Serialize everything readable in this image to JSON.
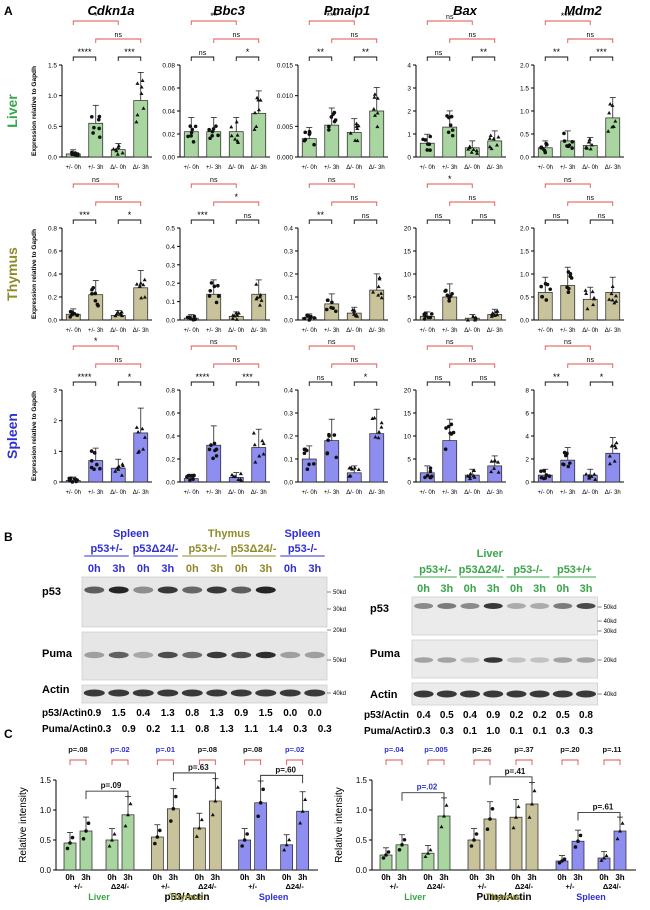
{
  "colors": {
    "liver": "#3aa64a",
    "thymus": "#8f8a2a",
    "spleen": "#2f2fd6",
    "bar_liver": "#a8d5a0",
    "bar_thymus": "#c8c39a",
    "bar_spleen": "#8e8ef0",
    "bracket_red": "#e0524e",
    "pval_blue": "#3030d0"
  },
  "panel_labels": {
    "A": "A",
    "B": "B",
    "C": "C"
  },
  "panel_a": {
    "genes": [
      "Cdkn1a",
      "Bbc3",
      "Pmaip1",
      "Bax",
      "Mdm2"
    ],
    "tissues": [
      "Liver",
      "Thymus",
      "Spleen"
    ],
    "ylabel": "Expression relative to Gapdh",
    "xticks": [
      "+/- 0h",
      "+/- 3h",
      "Δ/- 0h",
      "Δ/- 3h"
    ]
  },
  "chart_data": [
    {
      "type": "bar",
      "tissue": "Liver",
      "gene": "Cdkn1a",
      "categories": [
        "+/- 0h",
        "+/- 3h",
        "Δ/- 0h",
        "Δ/- 3h"
      ],
      "values": [
        0.05,
        0.55,
        0.12,
        0.92
      ],
      "ylim": [
        0,
        1.5
      ],
      "yticks": [
        "0.0",
        "0.5",
        "1.0",
        "1.5"
      ],
      "sig": {
        "short_left": "****",
        "short_right": "***",
        "mid": "ns",
        "long": "*"
      }
    },
    {
      "type": "bar",
      "tissue": "Liver",
      "gene": "Bbc3",
      "categories": [
        "+/- 0h",
        "+/- 3h",
        "Δ/- 0h",
        "Δ/- 3h"
      ],
      "values": [
        0.022,
        0.022,
        0.022,
        0.038
      ],
      "ylim": [
        0,
        0.08
      ],
      "yticks": [
        "0.00",
        "0.02",
        "0.04",
        "0.06",
        "0.08"
      ],
      "sig": {
        "short_left": "ns",
        "short_right": "*",
        "mid": "ns",
        "long": "**"
      }
    },
    {
      "type": "bar",
      "tissue": "Liver",
      "gene": "Pmaip1",
      "categories": [
        "+/- 0h",
        "+/- 3h",
        "Δ/- 0h",
        "Δ/- 3h"
      ],
      "values": [
        0.003,
        0.0052,
        0.004,
        0.0075
      ],
      "ylim": [
        0,
        0.015
      ],
      "yticks": [
        "0.000",
        "0.005",
        "0.010",
        "0.015"
      ],
      "sig": {
        "short_left": "**",
        "short_right": "**",
        "mid": "ns",
        "long": "***"
      }
    },
    {
      "type": "bar",
      "tissue": "Liver",
      "gene": "Bax",
      "categories": [
        "+/- 0h",
        "+/- 3h",
        "Δ/- 0h",
        "Δ/- 3h"
      ],
      "values": [
        0.6,
        1.3,
        0.4,
        0.7
      ],
      "ylim": [
        0,
        4
      ],
      "yticks": [
        "0",
        "1",
        "2",
        "3",
        "4"
      ],
      "sig": {
        "short_left": "ns",
        "short_right": "**",
        "mid": "ns",
        "long": "ns"
      }
    },
    {
      "type": "bar",
      "tissue": "Liver",
      "gene": "Mdm2",
      "categories": [
        "+/- 0h",
        "+/- 3h",
        "Δ/- 0h",
        "Δ/- 3h"
      ],
      "values": [
        0.2,
        0.35,
        0.25,
        0.85
      ],
      "ylim": [
        0,
        2.0
      ],
      "yticks": [
        "0.0",
        "0.5",
        "1.0",
        "1.5",
        "2.0"
      ],
      "sig": {
        "short_left": "**",
        "short_right": "***",
        "mid": "ns",
        "long": "****"
      }
    },
    {
      "type": "bar",
      "tissue": "Thymus",
      "gene": "Cdkn1a",
      "categories": [
        "+/- 0h",
        "+/- 3h",
        "Δ/- 0h",
        "Δ/- 3h"
      ],
      "values": [
        0.05,
        0.22,
        0.04,
        0.28
      ],
      "ylim": [
        0,
        0.8
      ],
      "yticks": [
        "0.0",
        "0.2",
        "0.4",
        "0.6",
        "0.8"
      ],
      "sig": {
        "short_left": "***",
        "short_right": "*",
        "mid": "ns",
        "long": "ns"
      }
    },
    {
      "type": "bar",
      "tissue": "Thymus",
      "gene": "Bbc3",
      "categories": [
        "+/- 0h",
        "+/- 3h",
        "Δ/- 0h",
        "Δ/- 3h"
      ],
      "values": [
        0.01,
        0.14,
        0.02,
        0.14
      ],
      "ylim": [
        0,
        0.5
      ],
      "yticks": [
        "0.0",
        "0.1",
        "0.2",
        "0.3",
        "0.4",
        "0.5"
      ],
      "sig": {
        "short_left": "***",
        "short_right": "ns",
        "mid": "*",
        "long": "ns"
      }
    },
    {
      "type": "bar",
      "tissue": "Thymus",
      "gene": "Pmaip1",
      "categories": [
        "+/- 0h",
        "+/- 3h",
        "Δ/- 0h",
        "Δ/- 3h"
      ],
      "values": [
        0.01,
        0.07,
        0.03,
        0.13
      ],
      "ylim": [
        0,
        0.4
      ],
      "yticks": [
        "0.0",
        "0.1",
        "0.2",
        "0.3",
        "0.4"
      ],
      "sig": {
        "short_left": "**",
        "short_right": "ns",
        "mid": "ns",
        "long": "ns"
      }
    },
    {
      "type": "bar",
      "tissue": "Thymus",
      "gene": "Bax",
      "categories": [
        "+/- 0h",
        "+/- 3h",
        "Δ/- 0h",
        "Δ/- 3h"
      ],
      "values": [
        0.8,
        5.0,
        0.4,
        1.2
      ],
      "ylim": [
        0,
        20
      ],
      "yticks": [
        "0",
        "5",
        "10",
        "15",
        "20"
      ],
      "sig": {
        "short_left": "ns",
        "short_right": "ns",
        "mid": "ns",
        "long": "*"
      }
    },
    {
      "type": "bar",
      "tissue": "Thymus",
      "gene": "Mdm2",
      "categories": [
        "+/- 0h",
        "+/- 3h",
        "Δ/- 0h",
        "Δ/- 3h"
      ],
      "values": [
        0.6,
        0.75,
        0.45,
        0.6
      ],
      "ylim": [
        0,
        2.0
      ],
      "yticks": [
        "0.0",
        "0.5",
        "1.0",
        "1.5",
        "2.0"
      ],
      "sig": {
        "short_left": "ns",
        "short_right": "ns",
        "mid": "ns",
        "long": "ns"
      }
    },
    {
      "type": "bar",
      "tissue": "Spleen",
      "gene": "Cdkn1a",
      "categories": [
        "+/- 0h",
        "+/- 3h",
        "Δ/- 0h",
        "Δ/- 3h"
      ],
      "values": [
        0.05,
        0.7,
        0.45,
        1.6
      ],
      "ylim": [
        0,
        3
      ],
      "yticks": [
        "0",
        "1",
        "2",
        "3"
      ],
      "sig": {
        "short_left": "****",
        "short_right": "*",
        "mid": "ns",
        "long": "*"
      }
    },
    {
      "type": "bar",
      "tissue": "Spleen",
      "gene": "Bbc3",
      "categories": [
        "+/- 0h",
        "+/- 3h",
        "Δ/- 0h",
        "Δ/- 3h"
      ],
      "values": [
        0.03,
        0.32,
        0.04,
        0.3
      ],
      "ylim": [
        0,
        0.8
      ],
      "yticks": [
        "0.0",
        "0.2",
        "0.4",
        "0.6",
        "0.8"
      ],
      "sig": {
        "short_left": "****",
        "short_right": "***",
        "mid": "ns",
        "long": "ns"
      }
    },
    {
      "type": "bar",
      "tissue": "Spleen",
      "gene": "Pmaip1",
      "categories": [
        "+/- 0h",
        "+/- 3h",
        "Δ/- 0h",
        "Δ/- 3h"
      ],
      "values": [
        0.1,
        0.18,
        0.04,
        0.21
      ],
      "ylim": [
        0,
        0.4
      ],
      "yticks": [
        "0.0",
        "0.1",
        "0.2",
        "0.3",
        "0.4"
      ],
      "sig": {
        "short_left": "ns",
        "short_right": "*",
        "mid": "ns",
        "long": "ns"
      }
    },
    {
      "type": "bar",
      "tissue": "Spleen",
      "gene": "Bax",
      "categories": [
        "+/- 0h",
        "+/- 3h",
        "Δ/- 0h",
        "Δ/- 3h"
      ],
      "values": [
        2.0,
        9.0,
        1.5,
        3.5
      ],
      "ylim": [
        0,
        20
      ],
      "yticks": [
        "0",
        "5",
        "10",
        "15",
        "20"
      ],
      "sig": {
        "short_left": "ns",
        "short_right": "ns",
        "mid": "ns",
        "long": "ns"
      }
    },
    {
      "type": "bar",
      "tissue": "Spleen",
      "gene": "Mdm2",
      "categories": [
        "+/- 0h",
        "+/- 3h",
        "Δ/- 0h",
        "Δ/- 3h"
      ],
      "values": [
        0.6,
        1.9,
        0.6,
        2.5
      ],
      "ylim": [
        0,
        8
      ],
      "yticks": [
        "0",
        "2",
        "4",
        "6",
        "8"
      ],
      "sig": {
        "short_left": "**",
        "short_right": "*",
        "mid": "ns",
        "long": "ns"
      }
    },
    {
      "type": "bar",
      "name": "p53/Actin",
      "xlabel": "p53/Actin",
      "ylabel": "Relative intensity",
      "ylim": [
        0,
        1.5
      ],
      "yticks": [
        "0.0",
        "0.5",
        "1.0",
        "1.5"
      ],
      "groups": [
        "Liver",
        "Thymus",
        "Spleen"
      ],
      "subgroups": [
        "+/-",
        "Δ24/-"
      ],
      "times": [
        "0h",
        "3h"
      ],
      "values": [
        [
          0.45,
          0.65,
          0.5,
          0.92
        ],
        [
          0.55,
          1.02,
          0.7,
          1.15
        ],
        [
          0.5,
          1.12,
          0.42,
          0.98
        ]
      ],
      "pvals_top": [
        "p=.08",
        "p=.02",
        "p=.01",
        "p=.08",
        "p=.08",
        "p=.02"
      ],
      "pvals_blue": [
        false,
        true,
        true,
        false,
        false,
        true
      ],
      "pvals_cross": [
        "p=.09",
        "p=.63",
        "p=.60"
      ]
    },
    {
      "type": "bar",
      "name": "Puma/Actin",
      "xlabel": "Puma/Actin",
      "ylabel": "Relative intensity",
      "ylim": [
        0,
        1.5
      ],
      "yticks": [
        "0.0",
        "0.5",
        "1.0",
        "1.5"
      ],
      "groups": [
        "Liver",
        "Thymus",
        "Spleen"
      ],
      "subgroups": [
        "+/-",
        "Δ24/-"
      ],
      "times": [
        "0h",
        "3h"
      ],
      "values": [
        [
          0.25,
          0.42,
          0.28,
          0.9
        ],
        [
          0.5,
          0.85,
          0.88,
          1.1
        ],
        [
          0.15,
          0.48,
          0.2,
          0.65
        ]
      ],
      "pvals_top": [
        "p=.04",
        "p=.005",
        "p=.26",
        "p=.37",
        "p=.20",
        "p=.11"
      ],
      "pvals_blue": [
        true,
        true,
        false,
        false,
        false,
        false
      ],
      "pvals_cross": [
        "p=.02",
        "p=.41",
        "p=.61"
      ],
      "pvals_cross_blue": [
        true,
        false,
        false
      ]
    }
  ],
  "panel_b_left": {
    "headers": [
      {
        "text": "Spleen",
        "tissue": "spleen"
      },
      {
        "text": "Thymus",
        "tissue": "thymus"
      },
      {
        "text": "Spleen",
        "tissue": "spleen"
      }
    ],
    "genotypes": [
      {
        "text": "p53+/-",
        "tissue": "spleen"
      },
      {
        "text": "p53Δ24/-",
        "tissue": "spleen"
      },
      {
        "text": "p53+/-",
        "tissue": "thymus"
      },
      {
        "text": "p53Δ24/-",
        "tissue": "thymus"
      },
      {
        "text": "p53-/-",
        "tissue": "spleen"
      }
    ],
    "times": [
      "0h",
      "3h",
      "0h",
      "3h",
      "0h",
      "3h",
      "0h",
      "3h",
      "0h",
      "3h"
    ],
    "time_tissue": [
      "spleen",
      "spleen",
      "spleen",
      "spleen",
      "thymus",
      "thymus",
      "thymus",
      "thymus",
      "spleen",
      "spleen"
    ],
    "row_labels": [
      "p53",
      "Puma",
      "Actin"
    ],
    "mw": [
      "50kd",
      "30kd",
      "20kd",
      "50kd",
      "40kd"
    ],
    "quant": [
      {
        "label": "p53/Actin",
        "values": [
          "0.9",
          "1.5",
          "0.4",
          "1.3",
          "0.8",
          "1.3",
          "0.9",
          "1.5",
          "0.0",
          "0.0"
        ]
      },
      {
        "label": "Puma/Actin",
        "values": [
          "0.3",
          "0.9",
          "0.2",
          "1.1",
          "0.8",
          "1.3",
          "1.1",
          "1.4",
          "0.3",
          "0.3"
        ]
      }
    ]
  },
  "panel_b_right": {
    "header": "Liver",
    "genotypes": [
      "p53+/-",
      "p53Δ24/-",
      "p53-/-",
      "p53+/+"
    ],
    "times": [
      "0h",
      "3h",
      "0h",
      "3h",
      "0h",
      "3h",
      "0h",
      "3h"
    ],
    "row_labels": [
      "p53",
      "Puma",
      "Actin"
    ],
    "mw": [
      "50kd",
      "40kd",
      "30kd",
      "20kd",
      "40kd"
    ],
    "quant": [
      {
        "label": "p53/Actin",
        "values": [
          "0.4",
          "0.5",
          "0.4",
          "0.9",
          "0.2",
          "0.2",
          "0.5",
          "0.8"
        ]
      },
      {
        "label": "Puma/Actin",
        "values": [
          "0.3",
          "0.3",
          "0.1",
          "1.0",
          "0.1",
          "0.1",
          "0.3",
          "0.3"
        ]
      }
    ]
  }
}
